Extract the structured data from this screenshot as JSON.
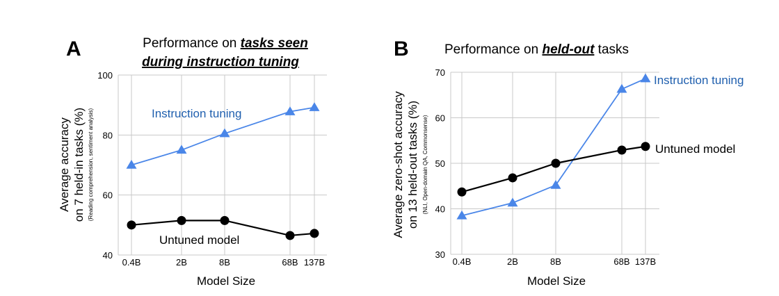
{
  "colors": {
    "instruction": "#4a86e8",
    "untuned": "#000000",
    "grid": "#c8c8c8",
    "axis": "#444444",
    "instruction_label": "#1f5fae"
  },
  "chart_data": [
    {
      "type": "line",
      "panel": "A",
      "title_prefix": "Performance on ",
      "title_emph_line1": "tasks seen",
      "title_emph_line2": "during instruction tuning",
      "ylabel_line1": "Average accuracy",
      "ylabel_line2": "on 7 held-in tasks (%)",
      "ylabel_line3": "(Reading comprehension, sentiment analysis)",
      "xlabel": "Model Size",
      "categories": [
        "0.4B",
        "2B",
        "8B",
        "68B",
        "137B"
      ],
      "x": [
        0.4,
        2,
        8,
        68,
        137
      ],
      "x_scale": "log",
      "ylim": [
        40,
        100
      ],
      "yticks": [
        40,
        60,
        80,
        100
      ],
      "grid": true,
      "series": [
        {
          "name": "Instruction tuning",
          "marker": "triangle",
          "values": [
            70.0,
            75.0,
            80.5,
            87.8,
            89.2
          ]
        },
        {
          "name": "Untuned model",
          "marker": "circle",
          "values": [
            50.0,
            51.5,
            51.5,
            46.5,
            47.2
          ]
        }
      ]
    },
    {
      "type": "line",
      "panel": "B",
      "title_prefix": "Performance on ",
      "title_emph": "held-out",
      "title_suffix": " tasks",
      "ylabel_line1": "Average zero-shot accuracy",
      "ylabel_line2": "on 13 held-out tasks (%)",
      "ylabel_line3": "(NLI, Open-domain QA, Commonsense)",
      "xlabel": "Model Size",
      "categories": [
        "0.4B",
        "2B",
        "8B",
        "68B",
        "137B"
      ],
      "x": [
        0.4,
        2,
        8,
        68,
        137
      ],
      "x_scale": "log",
      "ylim": [
        30,
        70
      ],
      "yticks": [
        30,
        40,
        50,
        60,
        70
      ],
      "grid": true,
      "series": [
        {
          "name": "Instruction tuning",
          "marker": "triangle",
          "values": [
            38.5,
            41.3,
            45.2,
            66.3,
            68.6
          ]
        },
        {
          "name": "Untuned model",
          "marker": "circle",
          "values": [
            43.7,
            46.8,
            50.0,
            52.9,
            53.7
          ]
        }
      ]
    }
  ]
}
